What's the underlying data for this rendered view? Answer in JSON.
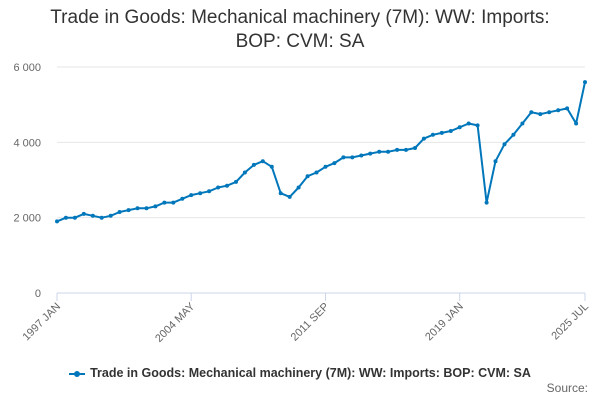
{
  "chart_data": {
    "type": "line",
    "title_line1": "Trade in Goods: Mechanical machinery (7M): WW: Imports:",
    "title_line2": "BOP: CVM: SA",
    "xlabel": "",
    "ylabel": "",
    "ylim": [
      0,
      6000
    ],
    "yticks": [
      {
        "value": 0,
        "label": "0"
      },
      {
        "value": 2000,
        "label": "2 000"
      },
      {
        "value": 4000,
        "label": "4 000"
      },
      {
        "value": 6000,
        "label": "6 000"
      }
    ],
    "xticks": [
      "1997 JAN",
      "2004 MAY",
      "2011 SEP",
      "2019 JAN",
      "2025 JUL"
    ],
    "grid": true,
    "legend_position": "bottom",
    "series": [
      {
        "name": "Trade in Goods: Mechanical machinery (7M): WW: Imports: BOP: CVM: SA",
        "color": "#0077bb",
        "x_labels": [
          "1997 JAN",
          "1997 JUL",
          "1998 JAN",
          "1998 JUL",
          "1999 JAN",
          "1999 JUL",
          "2000 JAN",
          "2000 JUL",
          "2001 JAN",
          "2001 JUL",
          "2002 JAN",
          "2002 JUL",
          "2003 JAN",
          "2003 JUL",
          "2004 JAN",
          "2004 MAY",
          "2004 JUL",
          "2005 JAN",
          "2005 JUL",
          "2006 JAN",
          "2006 JUL",
          "2007 JAN",
          "2007 JUL",
          "2008 JAN",
          "2008 JUL",
          "2009 JAN",
          "2009 JUL",
          "2010 JAN",
          "2010 JUL",
          "2011 JAN",
          "2011 SEP",
          "2012 JAN",
          "2012 JUL",
          "2013 JAN",
          "2013 JUL",
          "2014 JAN",
          "2014 JUL",
          "2015 JAN",
          "2015 JUL",
          "2016 JAN",
          "2016 JUL",
          "2017 JAN",
          "2017 JUL",
          "2018 JAN",
          "2018 JUL",
          "2019 JAN",
          "2019 JUL",
          "2020 JAN",
          "2020 APR",
          "2020 JUL",
          "2021 JAN",
          "2021 JUL",
          "2022 JAN",
          "2022 JUL",
          "2023 JAN",
          "2023 JUL",
          "2024 JAN",
          "2024 JUL",
          "2025 JAN",
          "2025 JUL"
        ],
        "values": [
          1900,
          2000,
          2000,
          2100,
          2050,
          2000,
          2050,
          2150,
          2200,
          2250,
          2250,
          2300,
          2400,
          2400,
          2500,
          2600,
          2650,
          2700,
          2800,
          2850,
          2950,
          3200,
          3400,
          3500,
          3350,
          2650,
          2550,
          2800,
          3100,
          3200,
          3350,
          3450,
          3600,
          3600,
          3650,
          3700,
          3750,
          3750,
          3800,
          3800,
          3850,
          4100,
          4200,
          4250,
          4300,
          4400,
          4500,
          4450,
          2400,
          3500,
          3950,
          4200,
          4500,
          4800,
          4750,
          4800,
          4850,
          4900,
          4500,
          5600
        ]
      }
    ]
  },
  "credits": "Source:"
}
